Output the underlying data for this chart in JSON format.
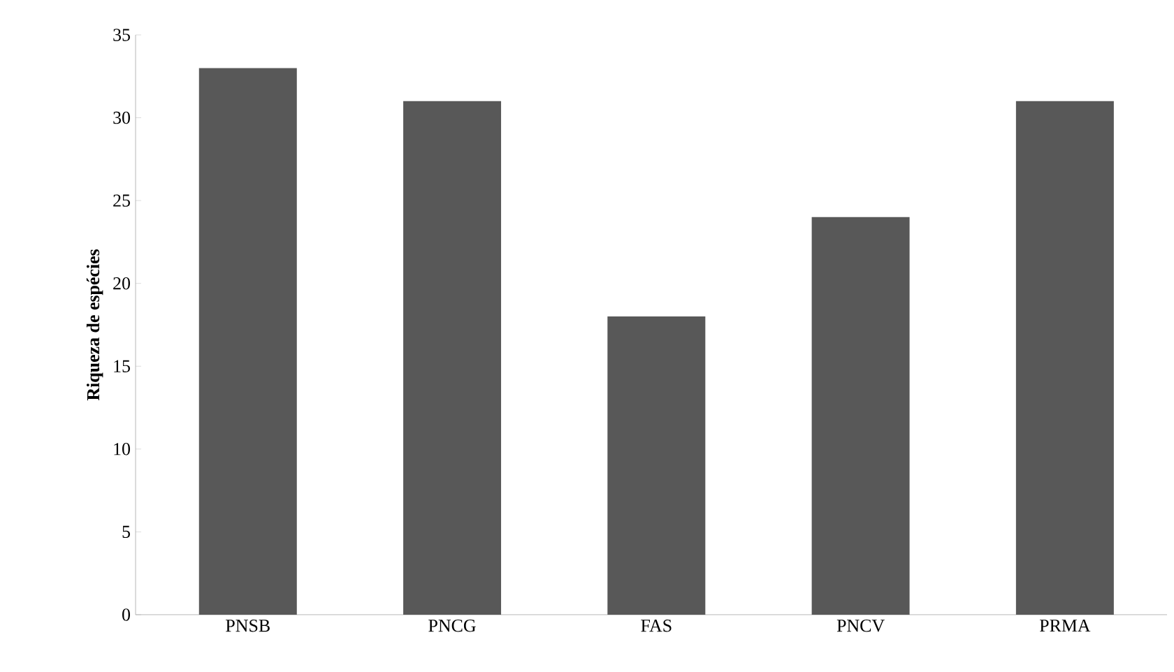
{
  "chart_data": {
    "type": "bar",
    "ylabel": "Riqueza de espécies",
    "categories": [
      "PNSB",
      "PNCG",
      "FAS",
      "PNCV",
      "PRMA"
    ],
    "values": [
      33,
      31,
      18,
      24,
      31
    ],
    "color": "#585858",
    "ylim": [
      0,
      35
    ],
    "yticks": [
      0,
      5,
      10,
      15,
      20,
      25,
      30,
      35
    ],
    "grid": false,
    "legend": false
  }
}
